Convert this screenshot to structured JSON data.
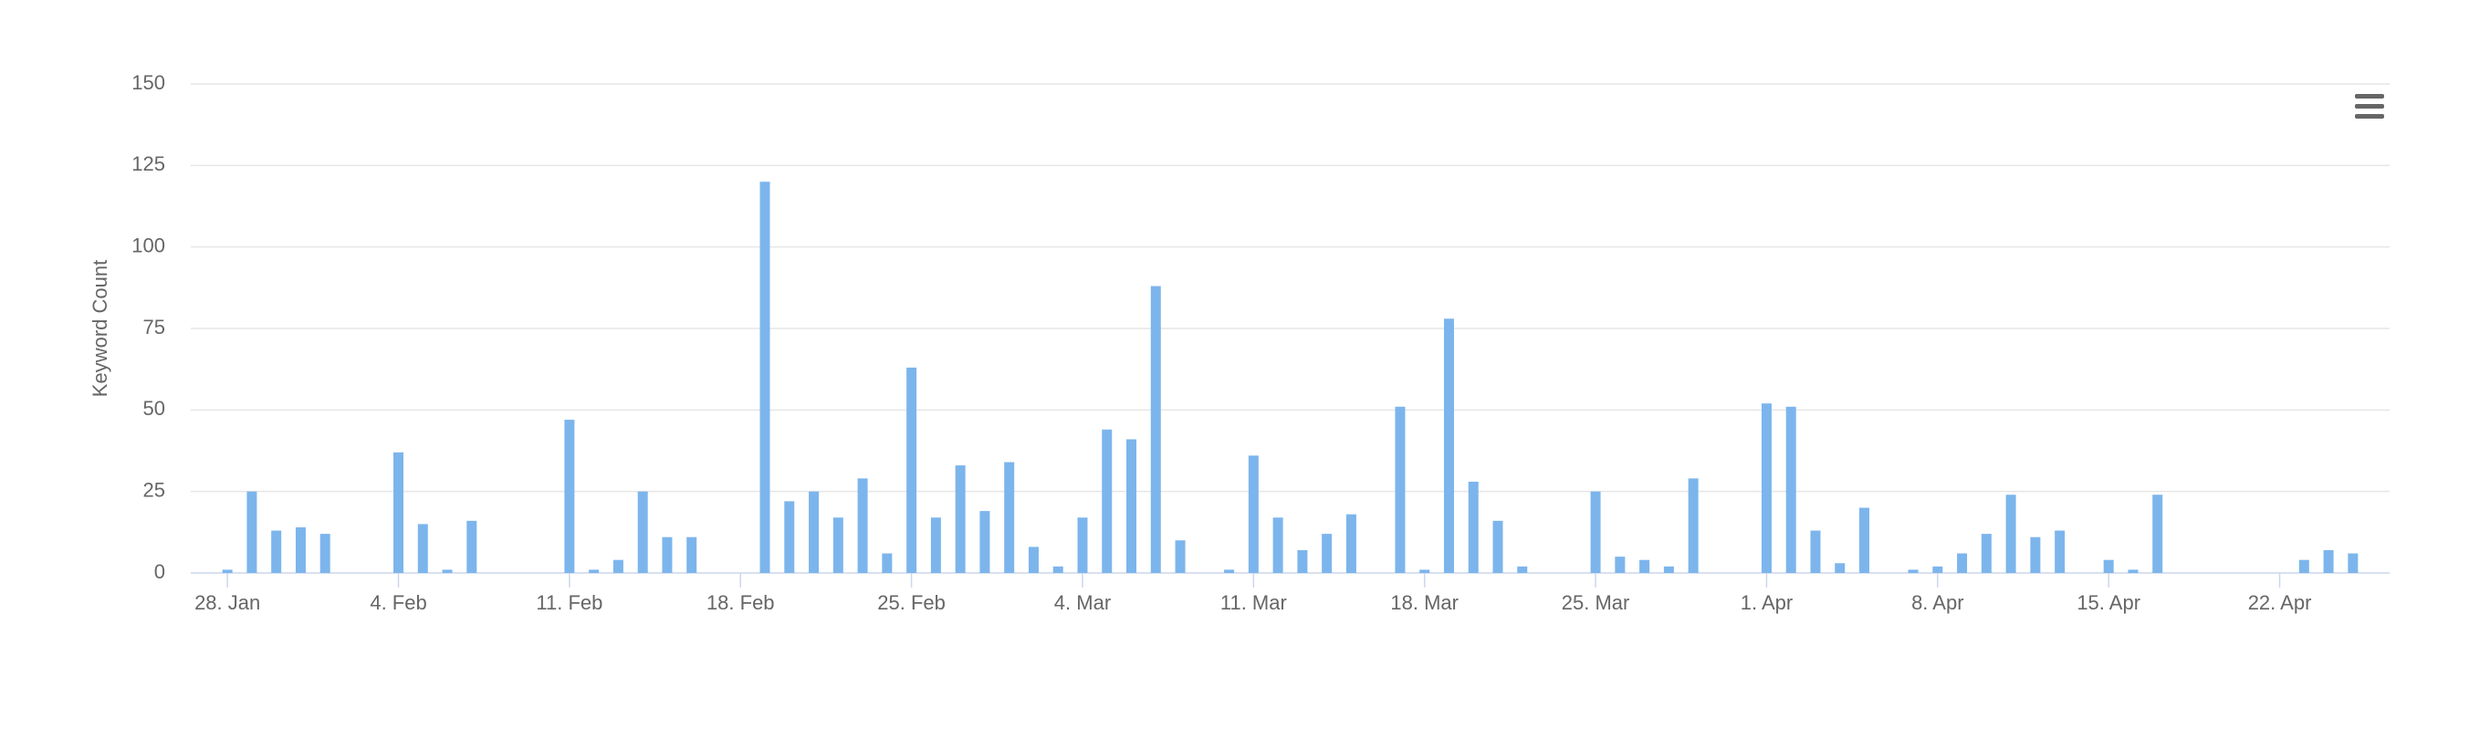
{
  "chart_data": {
    "type": "bar",
    "y_label": "Keyword Count",
    "categories": [
      null,
      "28. Jan",
      null,
      null,
      null,
      null,
      null,
      null,
      "4. Feb",
      null,
      null,
      null,
      null,
      null,
      null,
      "11. Feb",
      null,
      null,
      null,
      null,
      null,
      null,
      "18. Feb",
      null,
      null,
      null,
      null,
      null,
      null,
      "25. Feb",
      null,
      null,
      null,
      null,
      null,
      null,
      "4. Mar",
      null,
      null,
      null,
      null,
      null,
      null,
      "11. Mar",
      null,
      null,
      null,
      null,
      null,
      null,
      "18. Mar",
      null,
      null,
      null,
      null,
      null,
      null,
      "25. Mar",
      null,
      null,
      null,
      null,
      null,
      null,
      "1. Apr",
      null,
      null,
      null,
      null,
      null,
      null,
      "8. Apr",
      null,
      null,
      null,
      null,
      null,
      null,
      "15. Apr",
      null,
      null,
      null,
      null,
      null,
      null,
      "22. Apr",
      null,
      null,
      null,
      null
    ],
    "values": [
      0,
      1,
      25,
      13,
      14,
      12,
      0,
      0,
      37,
      15,
      1,
      16,
      0,
      0,
      0,
      47,
      1,
      4,
      25,
      11,
      11,
      0,
      0,
      120,
      22,
      25,
      17,
      29,
      6,
      63,
      17,
      33,
      19,
      34,
      8,
      2,
      17,
      44,
      41,
      88,
      10,
      0,
      1,
      36,
      17,
      7,
      12,
      18,
      0,
      51,
      1,
      78,
      28,
      16,
      2,
      0,
      0,
      25,
      5,
      4,
      2,
      29,
      0,
      0,
      52,
      51,
      13,
      3,
      20,
      0,
      1,
      2,
      6,
      12,
      24,
      11,
      13,
      0,
      4,
      1,
      24,
      0,
      0,
      0,
      0,
      0,
      4,
      7,
      6,
      0
    ],
    "color": "#7cb5ec",
    "ylim": [
      0,
      150
    ],
    "yticks": [
      0,
      25,
      50,
      75,
      100,
      125,
      150
    ],
    "grid": true
  }
}
